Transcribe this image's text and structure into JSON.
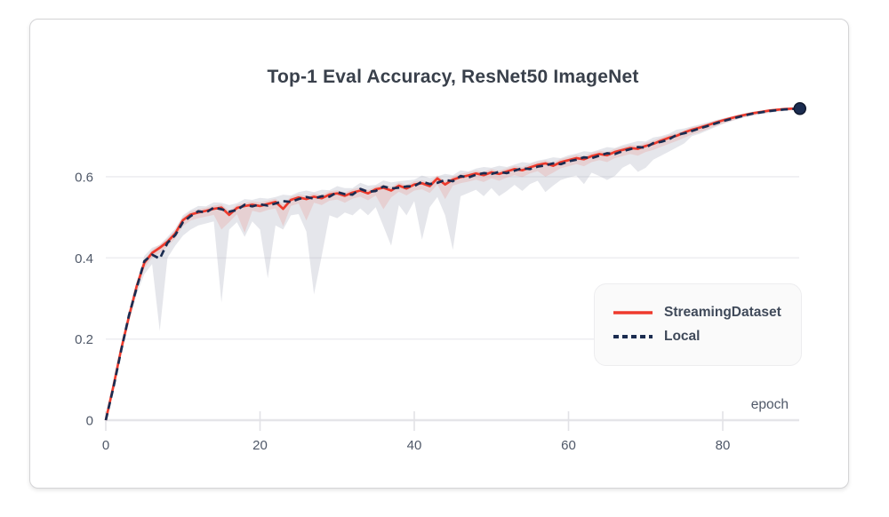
{
  "chart_data": {
    "type": "line",
    "title": "Top-1 Eval Accuracy, ResNet50 ImageNet",
    "xlabel": "epoch",
    "ylabel": "",
    "xlim": [
      0,
      90
    ],
    "ylim": [
      0,
      0.82
    ],
    "grid": "horizontal",
    "x_ticks": [
      0,
      20,
      40,
      60,
      80
    ],
    "x_tick_labels": [
      "0",
      "20",
      "40",
      "60",
      "80"
    ],
    "y_ticks": [
      0,
      0.2,
      0.4,
      0.6
    ],
    "y_tick_labels": [
      "0",
      "0.2",
      "0.4",
      "0.6"
    ],
    "legend_position": "inside-bottom-right",
    "x": [
      0,
      1,
      2,
      3,
      4,
      5,
      6,
      7,
      8,
      9,
      10,
      11,
      12,
      13,
      14,
      15,
      16,
      17,
      18,
      19,
      20,
      21,
      22,
      23,
      24,
      25,
      26,
      27,
      28,
      29,
      30,
      31,
      32,
      33,
      34,
      35,
      36,
      37,
      38,
      39,
      40,
      41,
      42,
      43,
      44,
      45,
      46,
      47,
      48,
      49,
      50,
      51,
      52,
      53,
      54,
      55,
      56,
      57,
      58,
      59,
      60,
      61,
      62,
      63,
      64,
      65,
      66,
      67,
      68,
      69,
      70,
      71,
      72,
      73,
      74,
      75,
      76,
      77,
      78,
      79,
      80,
      81,
      82,
      83,
      84,
      85,
      86,
      87,
      88,
      89,
      90
    ],
    "series": [
      {
        "name": "StreamingDataset",
        "color": "#ee3a2c",
        "style": "solid",
        "band_color": "rgba(238,58,44,0.13)",
        "values": [
          0.0,
          0.085,
          0.175,
          0.255,
          0.33,
          0.388,
          0.412,
          0.425,
          0.44,
          0.46,
          0.493,
          0.507,
          0.512,
          0.516,
          0.521,
          0.524,
          0.506,
          0.523,
          0.528,
          0.531,
          0.528,
          0.533,
          0.538,
          0.521,
          0.543,
          0.549,
          0.545,
          0.551,
          0.547,
          0.556,
          0.559,
          0.553,
          0.561,
          0.566,
          0.559,
          0.569,
          0.573,
          0.566,
          0.578,
          0.571,
          0.581,
          0.584,
          0.577,
          0.596,
          0.581,
          0.593,
          0.599,
          0.603,
          0.608,
          0.604,
          0.611,
          0.607,
          0.613,
          0.619,
          0.616,
          0.623,
          0.629,
          0.633,
          0.627,
          0.636,
          0.641,
          0.646,
          0.643,
          0.651,
          0.656,
          0.653,
          0.661,
          0.666,
          0.671,
          0.669,
          0.676,
          0.681,
          0.689,
          0.696,
          0.701,
          0.709,
          0.716,
          0.721,
          0.727,
          0.733,
          0.739,
          0.744,
          0.749,
          0.753,
          0.757,
          0.76,
          0.763,
          0.765,
          0.767,
          0.768,
          0.768
        ],
        "band_min": [
          0.0,
          0.08,
          0.168,
          0.246,
          0.32,
          0.375,
          0.4,
          0.412,
          0.428,
          0.448,
          0.478,
          0.492,
          0.498,
          0.502,
          0.506,
          0.47,
          0.488,
          0.508,
          0.462,
          0.516,
          0.512,
          0.518,
          0.522,
          0.478,
          0.528,
          0.534,
          0.492,
          0.536,
          0.53,
          0.541,
          0.544,
          0.536,
          0.546,
          0.551,
          0.542,
          0.554,
          0.52,
          0.549,
          0.563,
          0.554,
          0.566,
          0.569,
          0.56,
          0.581,
          0.545,
          0.578,
          0.584,
          0.588,
          0.593,
          0.587,
          0.596,
          0.59,
          0.598,
          0.604,
          0.599,
          0.608,
          0.614,
          0.6,
          0.61,
          0.621,
          0.626,
          0.631,
          0.626,
          0.636,
          0.641,
          0.636,
          0.646,
          0.651,
          0.656,
          0.652,
          0.661,
          0.666,
          0.674,
          0.681,
          0.688,
          0.696,
          0.704,
          0.71,
          0.717,
          0.724,
          0.731,
          0.737,
          0.743,
          0.748,
          0.752,
          0.756,
          0.759,
          0.762,
          0.764,
          0.766,
          0.767
        ],
        "band_max": [
          0.003,
          0.092,
          0.183,
          0.263,
          0.338,
          0.396,
          0.42,
          0.433,
          0.448,
          0.468,
          0.501,
          0.515,
          0.52,
          0.524,
          0.529,
          0.532,
          0.516,
          0.531,
          0.536,
          0.539,
          0.537,
          0.541,
          0.546,
          0.532,
          0.551,
          0.557,
          0.553,
          0.559,
          0.555,
          0.564,
          0.567,
          0.561,
          0.569,
          0.574,
          0.567,
          0.577,
          0.581,
          0.575,
          0.586,
          0.58,
          0.589,
          0.592,
          0.586,
          0.604,
          0.59,
          0.601,
          0.607,
          0.611,
          0.616,
          0.612,
          0.619,
          0.615,
          0.621,
          0.627,
          0.624,
          0.631,
          0.637,
          0.641,
          0.635,
          0.644,
          0.649,
          0.654,
          0.651,
          0.659,
          0.664,
          0.661,
          0.669,
          0.674,
          0.679,
          0.677,
          0.684,
          0.689,
          0.697,
          0.703,
          0.708,
          0.715,
          0.722,
          0.727,
          0.732,
          0.738,
          0.743,
          0.748,
          0.752,
          0.756,
          0.76,
          0.763,
          0.766,
          0.768,
          0.769,
          0.77,
          0.77
        ]
      },
      {
        "name": "Local",
        "color": "#1b2c50",
        "style": "dashed",
        "band_color": "rgba(168,173,189,0.30)",
        "values": [
          0.0,
          0.082,
          0.172,
          0.258,
          0.326,
          0.392,
          0.408,
          0.398,
          0.437,
          0.456,
          0.488,
          0.503,
          0.515,
          0.512,
          0.524,
          0.52,
          0.514,
          0.518,
          0.531,
          0.527,
          0.532,
          0.529,
          0.534,
          0.54,
          0.538,
          0.545,
          0.55,
          0.546,
          0.552,
          0.551,
          0.562,
          0.557,
          0.556,
          0.57,
          0.563,
          0.565,
          0.576,
          0.571,
          0.573,
          0.576,
          0.577,
          0.588,
          0.582,
          0.585,
          0.592,
          0.589,
          0.602,
          0.598,
          0.605,
          0.609,
          0.607,
          0.612,
          0.609,
          0.615,
          0.621,
          0.619,
          0.625,
          0.628,
          0.633,
          0.631,
          0.638,
          0.642,
          0.648,
          0.646,
          0.652,
          0.658,
          0.656,
          0.663,
          0.668,
          0.673,
          0.672,
          0.683,
          0.686,
          0.692,
          0.703,
          0.707,
          0.713,
          0.719,
          0.725,
          0.731,
          0.737,
          0.742,
          0.747,
          0.752,
          0.756,
          0.759,
          0.762,
          0.764,
          0.766,
          0.767,
          0.768
        ],
        "band_min": [
          0.0,
          0.075,
          0.16,
          0.24,
          0.31,
          0.36,
          0.385,
          0.22,
          0.4,
          0.43,
          0.455,
          0.47,
          0.48,
          0.485,
          0.49,
          0.29,
          0.47,
          0.488,
          0.452,
          0.49,
          0.47,
          0.35,
          0.48,
          0.47,
          0.505,
          0.508,
          0.465,
          0.31,
          0.405,
          0.505,
          0.498,
          0.512,
          0.505,
          0.522,
          0.505,
          0.525,
          0.478,
          0.43,
          0.53,
          0.505,
          0.54,
          0.445,
          0.525,
          0.55,
          0.505,
          0.42,
          0.552,
          0.56,
          0.568,
          0.552,
          0.572,
          0.552,
          0.565,
          0.58,
          0.565,
          0.582,
          0.59,
          0.562,
          0.578,
          0.592,
          0.598,
          0.603,
          0.582,
          0.61,
          0.602,
          0.592,
          0.602,
          0.622,
          0.632,
          0.612,
          0.622,
          0.642,
          0.652,
          0.662,
          0.672,
          0.682,
          0.7,
          0.706,
          0.714,
          0.722,
          0.73,
          0.736,
          0.742,
          0.747,
          0.751,
          0.754,
          0.757,
          0.76,
          0.762,
          0.764,
          0.766
        ],
        "band_max": [
          0.002,
          0.09,
          0.182,
          0.268,
          0.34,
          0.405,
          0.425,
          0.432,
          0.452,
          0.472,
          0.505,
          0.518,
          0.528,
          0.527,
          0.537,
          0.536,
          0.53,
          0.535,
          0.545,
          0.543,
          0.548,
          0.546,
          0.55,
          0.556,
          0.554,
          0.562,
          0.566,
          0.562,
          0.568,
          0.567,
          0.577,
          0.572,
          0.572,
          0.585,
          0.578,
          0.58,
          0.591,
          0.586,
          0.589,
          0.591,
          0.593,
          0.603,
          0.597,
          0.601,
          0.607,
          0.604,
          0.616,
          0.613,
          0.62,
          0.624,
          0.622,
          0.627,
          0.624,
          0.63,
          0.636,
          0.634,
          0.64,
          0.643,
          0.648,
          0.646,
          0.653,
          0.657,
          0.663,
          0.661,
          0.667,
          0.673,
          0.671,
          0.678,
          0.683,
          0.688,
          0.687,
          0.697,
          0.7,
          0.706,
          0.716,
          0.719,
          0.724,
          0.729,
          0.734,
          0.739,
          0.744,
          0.748,
          0.753,
          0.757,
          0.761,
          0.763,
          0.766,
          0.768,
          0.769,
          0.77,
          0.771
        ]
      }
    ],
    "end_marker": {
      "epoch": 90,
      "value": 0.768,
      "color": "#1b2c50"
    }
  }
}
